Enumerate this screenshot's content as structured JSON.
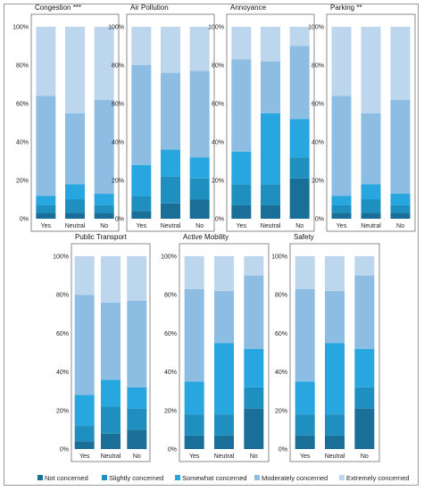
{
  "legend": [
    {
      "label": "Not concerned",
      "color": "#1a6f99"
    },
    {
      "label": "Slightly concerned",
      "color": "#1f8fbf"
    },
    {
      "label": "Somewhat concerned",
      "color": "#27a6df"
    },
    {
      "label": "Moderately concerned",
      "color": "#8dbde3"
    },
    {
      "label": "Extremely concerned",
      "color": "#bcd6ee"
    }
  ],
  "chart_data": [
    {
      "type": "bar",
      "stacked": true,
      "title": "Congestion ***",
      "categories": [
        "Yes",
        "Neutral",
        "No"
      ],
      "yticks": [
        "0%",
        "20%",
        "40%",
        "60%",
        "80%",
        "100%"
      ],
      "ylim": [
        0,
        100
      ],
      "series": [
        {
          "name": "Not concerned",
          "values": [
            3,
            3,
            3
          ]
        },
        {
          "name": "Slightly concerned",
          "values": [
            4,
            7,
            4
          ]
        },
        {
          "name": "Somewhat concerned",
          "values": [
            5,
            8,
            6
          ]
        },
        {
          "name": "Moderately concerned",
          "values": [
            52,
            37,
            49
          ]
        },
        {
          "name": "Extremely concerned",
          "values": [
            36,
            45,
            38
          ]
        }
      ]
    },
    {
      "type": "bar",
      "stacked": true,
      "title": "Air Pollution",
      "categories": [
        "Yes",
        "Neutral",
        "No"
      ],
      "yticks": [
        "0%",
        "20%",
        "40%",
        "60%",
        "80%",
        "100%"
      ],
      "ylim": [
        0,
        100
      ],
      "series": [
        {
          "name": "Not concerned",
          "values": [
            4,
            8,
            10
          ]
        },
        {
          "name": "Slightly concerned",
          "values": [
            8,
            14,
            11
          ]
        },
        {
          "name": "Somewhat concerned",
          "values": [
            16,
            14,
            11
          ]
        },
        {
          "name": "Moderately concerned",
          "values": [
            52,
            40,
            45
          ]
        },
        {
          "name": "Extremely concerned",
          "values": [
            20,
            24,
            23
          ]
        }
      ]
    },
    {
      "type": "bar",
      "stacked": true,
      "title": "Annoyance",
      "categories": [
        "Yes",
        "Neutral",
        "No"
      ],
      "yticks": [
        "0%",
        "20%",
        "40%",
        "60%",
        "80%",
        "100%"
      ],
      "ylim": [
        0,
        100
      ],
      "series": [
        {
          "name": "Not concerned",
          "values": [
            7,
            7,
            21
          ]
        },
        {
          "name": "Slightly concerned",
          "values": [
            11,
            11,
            11
          ]
        },
        {
          "name": "Somewhat concerned",
          "values": [
            17,
            37,
            20
          ]
        },
        {
          "name": "Moderately concerned",
          "values": [
            48,
            27,
            38
          ]
        },
        {
          "name": "Extremely concerned",
          "values": [
            17,
            18,
            10
          ]
        }
      ]
    },
    {
      "type": "bar",
      "stacked": true,
      "title": "Parking **",
      "categories": [
        "Yes",
        "Neutral",
        "No"
      ],
      "yticks": [
        "0%",
        "20%",
        "40%",
        "60%",
        "80%",
        "100%"
      ],
      "ylim": [
        0,
        100
      ],
      "series": [
        {
          "name": "Not concerned",
          "values": [
            3,
            3,
            3
          ]
        },
        {
          "name": "Slightly concerned",
          "values": [
            4,
            7,
            4
          ]
        },
        {
          "name": "Somewhat concerned",
          "values": [
            5,
            8,
            6
          ]
        },
        {
          "name": "Moderately concerned",
          "values": [
            52,
            37,
            49
          ]
        },
        {
          "name": "Extremely concerned",
          "values": [
            36,
            45,
            38
          ]
        }
      ]
    },
    {
      "type": "bar",
      "stacked": true,
      "title": "Public Transport",
      "categories": [
        "Yes",
        "Neutral",
        "No"
      ],
      "yticks": [
        "0%",
        "20%",
        "40%",
        "60%",
        "80%",
        "100%"
      ],
      "ylim": [
        0,
        100
      ],
      "series": [
        {
          "name": "Not concerned",
          "values": [
            4,
            8,
            10
          ]
        },
        {
          "name": "Slightly concerned",
          "values": [
            8,
            14,
            11
          ]
        },
        {
          "name": "Somewhat concerned",
          "values": [
            16,
            14,
            11
          ]
        },
        {
          "name": "Moderately concerned",
          "values": [
            52,
            40,
            45
          ]
        },
        {
          "name": "Extremely concerned",
          "values": [
            20,
            24,
            23
          ]
        }
      ]
    },
    {
      "type": "bar",
      "stacked": true,
      "title": "Active Mobility",
      "categories": [
        "Yes",
        "Neutral",
        "No"
      ],
      "yticks": [
        "0%",
        "20%",
        "40%",
        "60%",
        "80%",
        "100%"
      ],
      "ylim": [
        0,
        100
      ],
      "series": [
        {
          "name": "Not concerned",
          "values": [
            7,
            7,
            21
          ]
        },
        {
          "name": "Slightly concerned",
          "values": [
            11,
            11,
            11
          ]
        },
        {
          "name": "Somewhat concerned",
          "values": [
            17,
            37,
            20
          ]
        },
        {
          "name": "Moderately concerned",
          "values": [
            48,
            27,
            38
          ]
        },
        {
          "name": "Extremely concerned",
          "values": [
            17,
            18,
            10
          ]
        }
      ]
    },
    {
      "type": "bar",
      "stacked": true,
      "title": "Safety",
      "categories": [
        "Yes",
        "Neutral",
        "No"
      ],
      "yticks": [
        "0%",
        "20%",
        "40%",
        "60%",
        "80%",
        "100%"
      ],
      "ylim": [
        0,
        100
      ],
      "series": [
        {
          "name": "Not concerned",
          "values": [
            7,
            7,
            21
          ]
        },
        {
          "name": "Slightly concerned",
          "values": [
            11,
            11,
            11
          ]
        },
        {
          "name": "Somewhat concerned",
          "values": [
            17,
            37,
            20
          ]
        },
        {
          "name": "Moderately concerned",
          "values": [
            48,
            27,
            38
          ]
        },
        {
          "name": "Extremely concerned",
          "values": [
            17,
            18,
            10
          ]
        }
      ]
    }
  ]
}
